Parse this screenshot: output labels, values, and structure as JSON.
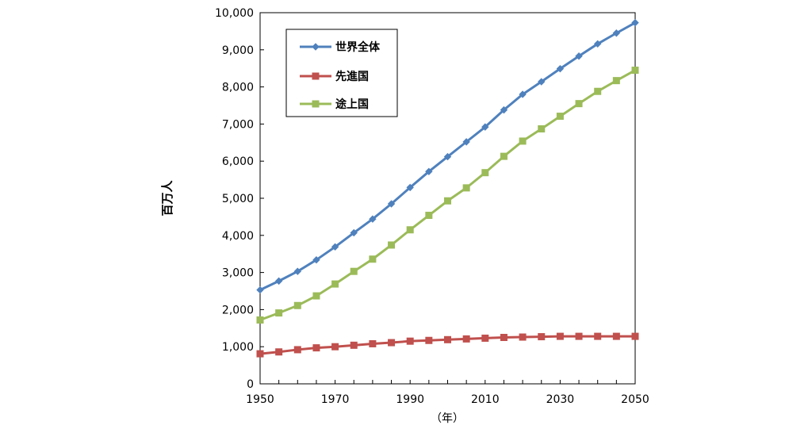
{
  "chart_data": {
    "type": "line",
    "title": "",
    "xlabel": "（年）",
    "ylabel": "百万人",
    "xlim": [
      1950,
      2050
    ],
    "ylim": [
      0,
      10000
    ],
    "x_ticks": [
      "1950",
      "1970",
      "1990",
      "2010",
      "2030",
      "2050"
    ],
    "y_ticks": [
      "0",
      "1,000",
      "2,000",
      "3,000",
      "4,000",
      "5,000",
      "6,000",
      "7,000",
      "8,000",
      "9,000",
      "10,000"
    ],
    "grid": false,
    "legend_position": "top-left",
    "x": [
      1950,
      1955,
      1960,
      1965,
      1970,
      1975,
      1980,
      1985,
      1990,
      1995,
      2000,
      2005,
      2010,
      2015,
      2020,
      2025,
      2030,
      2035,
      2040,
      2045,
      2050
    ],
    "series": [
      {
        "name": "世界全体",
        "color": "#4f81bd",
        "marker": "diamond",
        "values": [
          2530,
          2770,
          3030,
          3340,
          3690,
          4070,
          4440,
          4850,
          5290,
          5720,
          6120,
          6520,
          6920,
          7380,
          7800,
          8140,
          8490,
          8830,
          9160,
          9450,
          9730
        ]
      },
      {
        "name": "先進国",
        "color": "#c0504d",
        "marker": "square",
        "values": [
          810,
          860,
          920,
          970,
          1000,
          1040,
          1080,
          1110,
          1150,
          1170,
          1190,
          1210,
          1230,
          1250,
          1260,
          1270,
          1280,
          1280,
          1280,
          1280,
          1280
        ]
      },
      {
        "name": "途上国",
        "color": "#9bbb59",
        "marker": "square",
        "values": [
          1720,
          1910,
          2110,
          2370,
          2690,
          3030,
          3360,
          3740,
          4150,
          4540,
          4930,
          5280,
          5690,
          6130,
          6540,
          6870,
          7210,
          7550,
          7880,
          8170,
          8450
        ]
      }
    ]
  }
}
